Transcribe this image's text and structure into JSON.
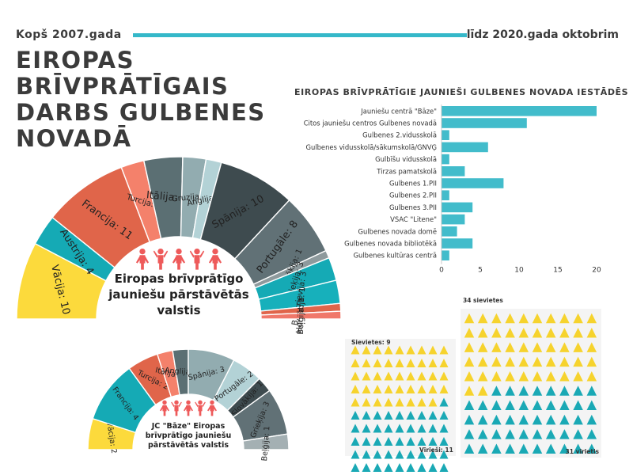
{
  "header": {
    "since": "Kopš 2007.gada",
    "until": "līdz 2020.gada oktobrim",
    "title_lines": [
      "EIROPAS BRĪVPRĀTĪGAIS",
      "DARBS GULBENES",
      "NOVADĀ"
    ]
  },
  "colors": {
    "accent": "#35b8c9",
    "bar": "#42bccb",
    "female": "#f6d32d",
    "male": "#1aa9b5",
    "people": "#ee5a5a"
  },
  "chart_data": [
    {
      "type": "pie",
      "title_lines": [
        "Eiropas brīvprātīgo",
        "jauniešu pārstāvētās",
        "valstis"
      ],
      "slices": [
        {
          "label": "Vācija: 10",
          "value": 10,
          "color": "#fcda3c"
        },
        {
          "label": "Austrija: 4",
          "value": 4,
          "color": "#15aab5"
        },
        {
          "label": "Francija: 11",
          "value": 11,
          "color": "#e0654a"
        },
        {
          "label": "Turcija: 3",
          "value": 3,
          "color": "#f4816b"
        },
        {
          "label": "Itālija: 5",
          "value": 5,
          "color": "#5b6f73"
        },
        {
          "label": "Gruzija: 3",
          "value": 3,
          "color": "#92acb0"
        },
        {
          "label": "Anglija: 2",
          "value": 2,
          "color": "#b3d2d6"
        },
        {
          "label": "Spānija: 10",
          "value": 10,
          "color": "#3e4b4f"
        },
        {
          "label": "Portugāle: 8",
          "value": 8,
          "color": "#617176"
        },
        {
          "label": "Slovākija: 1",
          "value": 1,
          "color": "#8e9a9d"
        },
        {
          "label": "Grieķija: 3",
          "value": 3,
          "color": "#15aab5"
        },
        {
          "label": "Baltkrievija: 3",
          "value": 3,
          "color": "#17b0bb"
        },
        {
          "label": "Horvātija: 1",
          "value": 1,
          "color": "#e0654a"
        },
        {
          "label": "Beļģija: 1",
          "value": 1,
          "color": "#f0786a"
        }
      ]
    },
    {
      "type": "pie",
      "title_lines": [
        "JC \"Bāze\" Eiropas",
        "brīvprātīgo jauniešu",
        "pārstāvētās valstis"
      ],
      "slices": [
        {
          "label": "Vācija: 2",
          "value": 2,
          "color": "#fcda3c"
        },
        {
          "label": "Francija: 4",
          "value": 4,
          "color": "#15aab5"
        },
        {
          "label": "Turcija: 2",
          "value": 2,
          "color": "#e0654a"
        },
        {
          "label": "Itālija: 1",
          "value": 1,
          "color": "#f4816b"
        },
        {
          "label": "Anglija: 1",
          "value": 1,
          "color": "#5b6f73"
        },
        {
          "label": "Spānija: 3",
          "value": 3,
          "color": "#92acb0"
        },
        {
          "label": "Portugāle: 2",
          "value": 2,
          "color": "#b3d2d6"
        },
        {
          "label": "Slovākija: 1",
          "value": 1,
          "color": "#3e4b4f"
        },
        {
          "label": "Grieķija: 3",
          "value": 3,
          "color": "#617176"
        },
        {
          "label": "Beļģija: 1",
          "value": 1,
          "color": "#a4b0b3"
        }
      ]
    },
    {
      "type": "bar",
      "title": "EIROPAS BRĪVPRĀTĪGIE JAUNIEŠI GULBENES NOVADA IESTĀDĒS",
      "categories": [
        "Jauniešu centrā \"Bāze\"",
        "Citos jauniešu centros Gulbenes novadā",
        "Gulbenes 2.vidusskolā",
        "Gulbenes vidusskolā/sākumskolā/GNVĢ",
        "Gulbīšu vidusskolā",
        "Tirzas pamatskolā",
        "Gulbenes 1.PII",
        "Gulbenes 2.PII",
        "Gulbenes 3.PII",
        "VSAC \"Litene\"",
        "Gulbenes novada domē",
        "Gulbenes novada bibliotēkā",
        "Gulbenes kultūras centrā"
      ],
      "values": [
        20,
        11,
        1,
        6,
        1,
        3,
        8,
        1,
        4,
        3,
        2,
        4,
        1
      ],
      "xlim": [
        0,
        20
      ],
      "xticks": [
        "0",
        "5",
        "10",
        "15",
        "20"
      ]
    },
    {
      "type": "pictogram",
      "groups": [
        {
          "female_label": "Sievietes: 9",
          "male_label": "Vīrieši: 11",
          "female": 9,
          "male": 11,
          "total_symbols": 98,
          "columns": 9
        },
        {
          "female_label": "34 sievietes",
          "male_label": "31 vīrietis",
          "female": 34,
          "male": 31,
          "total_symbols": 100,
          "columns": 10
        }
      ]
    }
  ]
}
